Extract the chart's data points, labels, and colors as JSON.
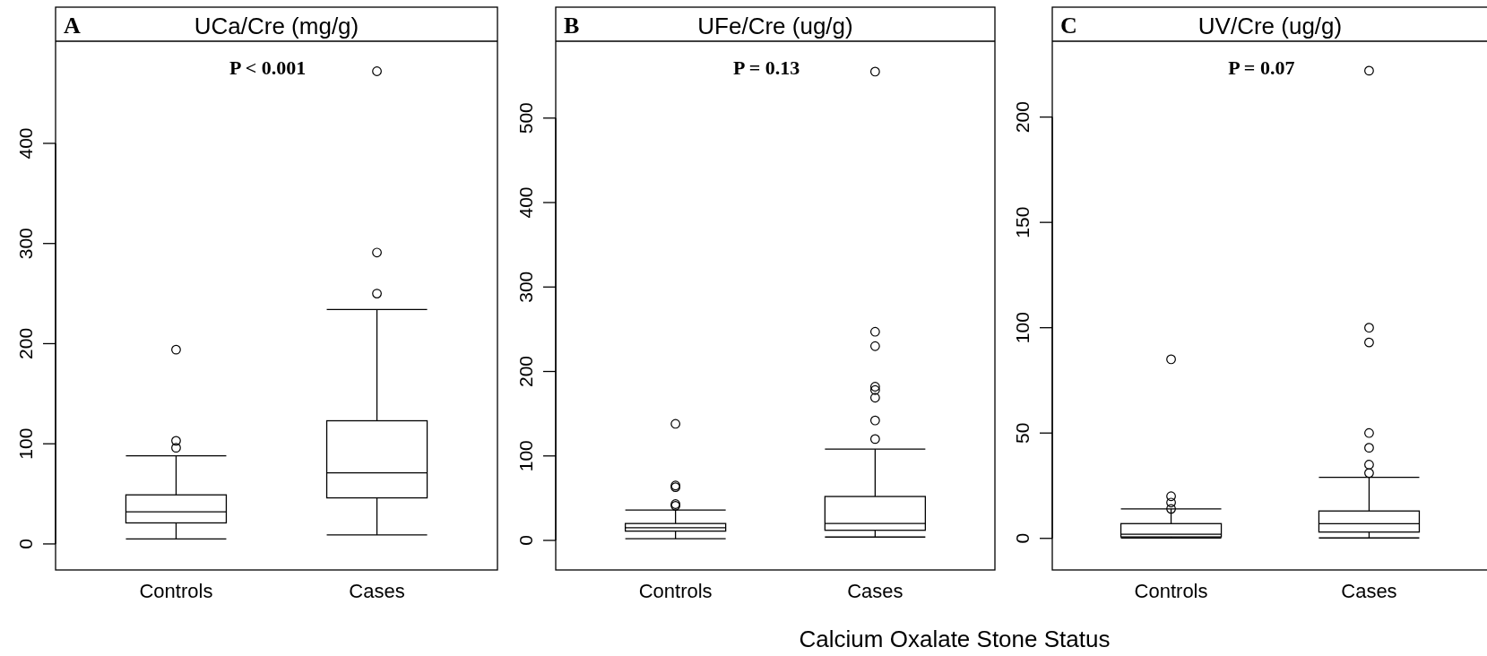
{
  "chart_data": [
    {
      "type": "box",
      "title": "UCa/Cre (mg/g)",
      "annotations": [
        "A",
        "P < 0.001"
      ],
      "categories": [
        "Controls",
        "Cases"
      ],
      "ylim": [
        -26,
        502
      ],
      "yticks": [
        0,
        100,
        200,
        300,
        400
      ],
      "color": "#000000",
      "boxes": [
        {
          "low": 5,
          "q1": 21,
          "median": 32,
          "q3": 49,
          "high": 88,
          "outliers": [
            96,
            103,
            194
          ]
        },
        {
          "low": 9,
          "q1": 46,
          "median": 71,
          "q3": 123,
          "high": 234,
          "outliers": [
            250,
            291,
            472
          ]
        }
      ]
    },
    {
      "type": "box",
      "title": "UFe/Cre (ug/g)",
      "annotations": [
        "B",
        "P = 0.13"
      ],
      "xlabel": "Calcium Oxalate Stone Status",
      "categories": [
        "Controls",
        "Cases"
      ],
      "ylim": [
        -35,
        591
      ],
      "yticks": [
        0,
        100,
        200,
        300,
        400,
        500
      ],
      "color": "#000000",
      "boxes": [
        {
          "low": 2,
          "q1": 11,
          "median": 15,
          "q3": 20,
          "high": 36,
          "outliers": [
            41,
            43,
            63,
            65,
            138
          ]
        },
        {
          "low": 4,
          "q1": 12,
          "median": 20,
          "q3": 52,
          "high": 108,
          "outliers": [
            120,
            142,
            169,
            178,
            182,
            230,
            247,
            555
          ]
        }
      ]
    },
    {
      "type": "box",
      "title": "UV/Cre (ug/g)",
      "annotations": [
        "C",
        "P = 0.07"
      ],
      "categories": [
        "Controls",
        "Cases"
      ],
      "ylim": [
        -15,
        236
      ],
      "yticks": [
        0,
        50,
        100,
        150,
        200
      ],
      "color": "#000000",
      "boxes": [
        {
          "low": 0.2,
          "q1": 0.7,
          "median": 2,
          "q3": 7,
          "high": 14,
          "outliers": [
            14,
            17,
            20,
            85
          ]
        },
        {
          "low": 0.2,
          "q1": 3,
          "median": 7,
          "q3": 13,
          "high": 29,
          "outliers": [
            31,
            35,
            43,
            50,
            93,
            100,
            222
          ]
        }
      ]
    }
  ]
}
